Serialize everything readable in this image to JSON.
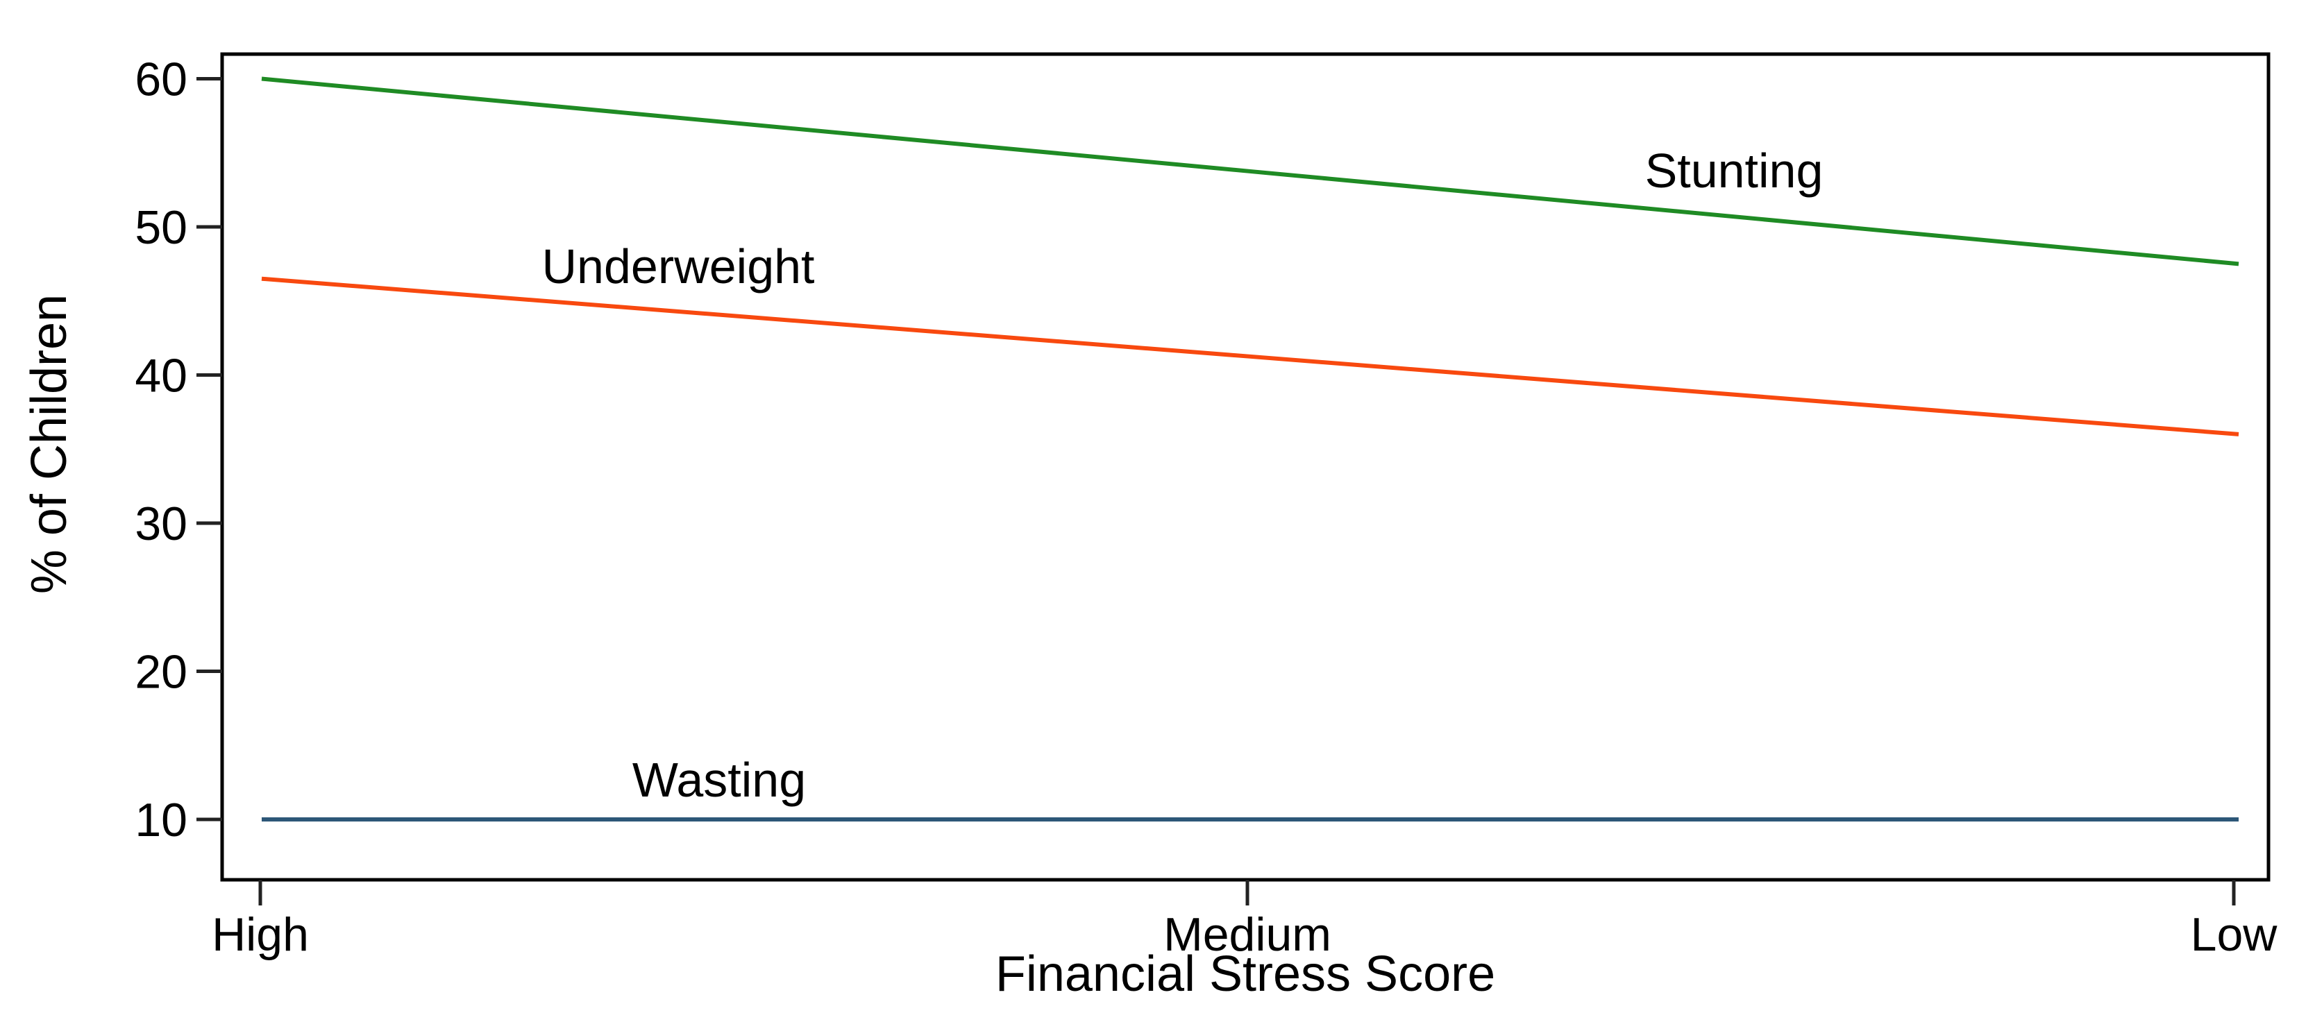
{
  "chart_data": {
    "type": "line",
    "title": "",
    "xlabel": "Financial Stress Score",
    "ylabel": "% of Children",
    "categories": [
      "High",
      "Medium",
      "Low"
    ],
    "yticks": [
      10,
      20,
      30,
      40,
      50,
      60
    ],
    "ylim": [
      5.9,
      61.7
    ],
    "grid": false,
    "legend_position": "inline-labels-on-lines",
    "background": "#FFFFFF",
    "axis_color": "#000000",
    "text_color": "#000000",
    "series": [
      {
        "name": "Stunting",
        "color": "#1F8B24",
        "values": [
          60,
          53.75,
          47.5
        ]
      },
      {
        "name": "Underweight",
        "color": "#F8490F",
        "values": [
          46.5,
          41.25,
          36
        ]
      },
      {
        "name": "Wasting",
        "color": "#2D5778",
        "values": [
          10,
          10,
          10
        ]
      }
    ]
  }
}
